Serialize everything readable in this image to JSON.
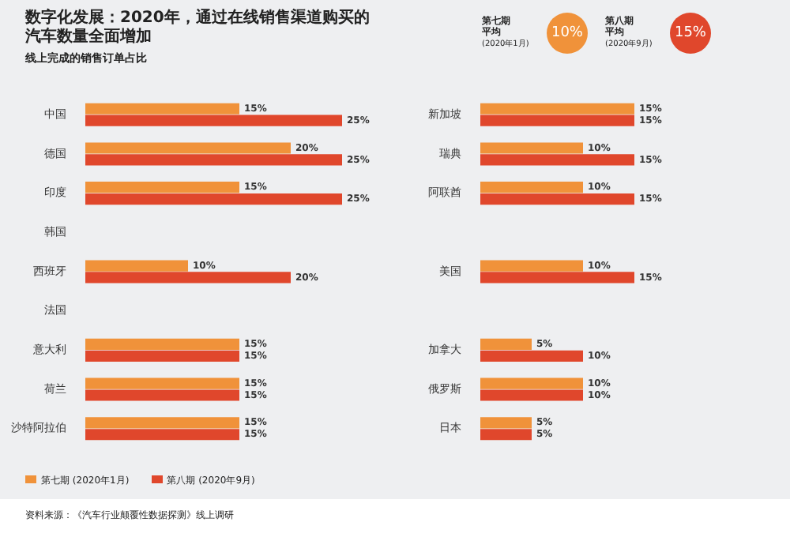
{
  "chart_data": [
    {
      "type": "bar",
      "orientation": "horizontal",
      "title": "数字化发展：2020年，通过在线销售渠道购买的汽车数量全面增加",
      "subtitle": "线上完成的销售订单占比",
      "legend": "bottom left",
      "annotations": [
        "第七期平均",
        "(2020年1月)",
        "10%",
        "第八期平均",
        "(2020年9月)",
        "15%",
        "资料来源：《汽车行业颠覆性数据探测》线上调研"
      ],
      "categories": [
        "中国",
        "德国",
        "印度",
        "韩国",
        "西班牙",
        "法国",
        "意大利",
        "荷兰",
        "沙特阿拉伯"
      ],
      "series": [
        {
          "name": "第七期 (2020年1月)",
          "color": "#f0923a",
          "values": [
            15,
            20,
            15,
            null,
            10,
            null,
            15,
            15,
            15
          ],
          "value_labels": [
            "15%",
            "20%",
            "15%",
            null,
            "10%",
            null,
            "15%",
            "15%",
            "15%"
          ]
        },
        {
          "name": "第八期 (2020年9月)",
          "color": "#e0472c",
          "values": [
            25,
            25,
            25,
            null,
            20,
            null,
            15,
            15,
            15
          ],
          "value_labels": [
            "25%",
            "25%",
            "25%",
            null,
            "20%",
            null,
            "15%",
            "15%",
            "15%"
          ]
        }
      ]
    },
    {
      "type": "bar",
      "orientation": "horizontal",
      "categories": [
        "新加坡",
        "瑞典",
        "阿联酋",
        null,
        "美国",
        null,
        "加拿大",
        "俄罗斯",
        "日本"
      ],
      "series": [
        {
          "color": "#f0923a",
          "values": [
            15,
            10,
            10,
            null,
            10,
            null,
            5,
            10,
            5
          ],
          "value_labels": [
            "15%",
            "10%",
            "10%",
            null,
            "10%",
            null,
            "5%",
            "10%",
            "5%"
          ]
        },
        {
          "color": "#e0472c",
          "values": [
            15,
            15,
            15,
            null,
            15,
            null,
            10,
            10,
            5
          ],
          "value_labels": [
            "15%",
            "15%",
            "15%",
            null,
            "15%",
            null,
            "10%",
            "10%",
            "5%"
          ]
        }
      ]
    }
  ]
}
